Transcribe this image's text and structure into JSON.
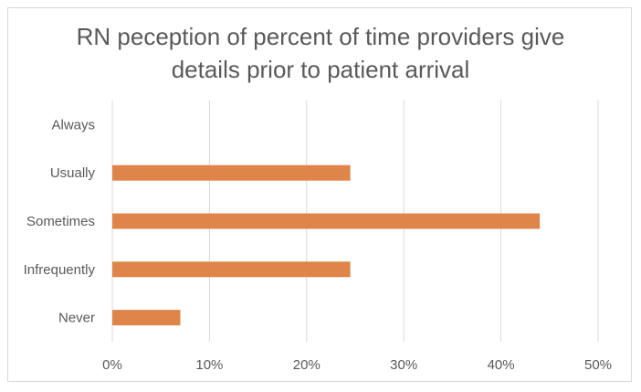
{
  "chart_data": {
    "type": "bar",
    "orientation": "horizontal",
    "title": "RN peception of percent of time providers give\ndetails prior to patient arrival",
    "categories": [
      "Always",
      "Usually",
      "Sometimes",
      "Infrequently",
      "Never"
    ],
    "values": [
      0,
      24.5,
      44,
      24.5,
      7
    ],
    "xlim": [
      0,
      50
    ],
    "x_ticks": [
      "0%",
      "10%",
      "20%",
      "30%",
      "40%",
      "50%"
    ],
    "x_tick_values": [
      0,
      10,
      20,
      30,
      40,
      50
    ],
    "grid": true,
    "legend": "none",
    "bar_color": "#E0854A",
    "grid_color": "#D9D9D9"
  }
}
